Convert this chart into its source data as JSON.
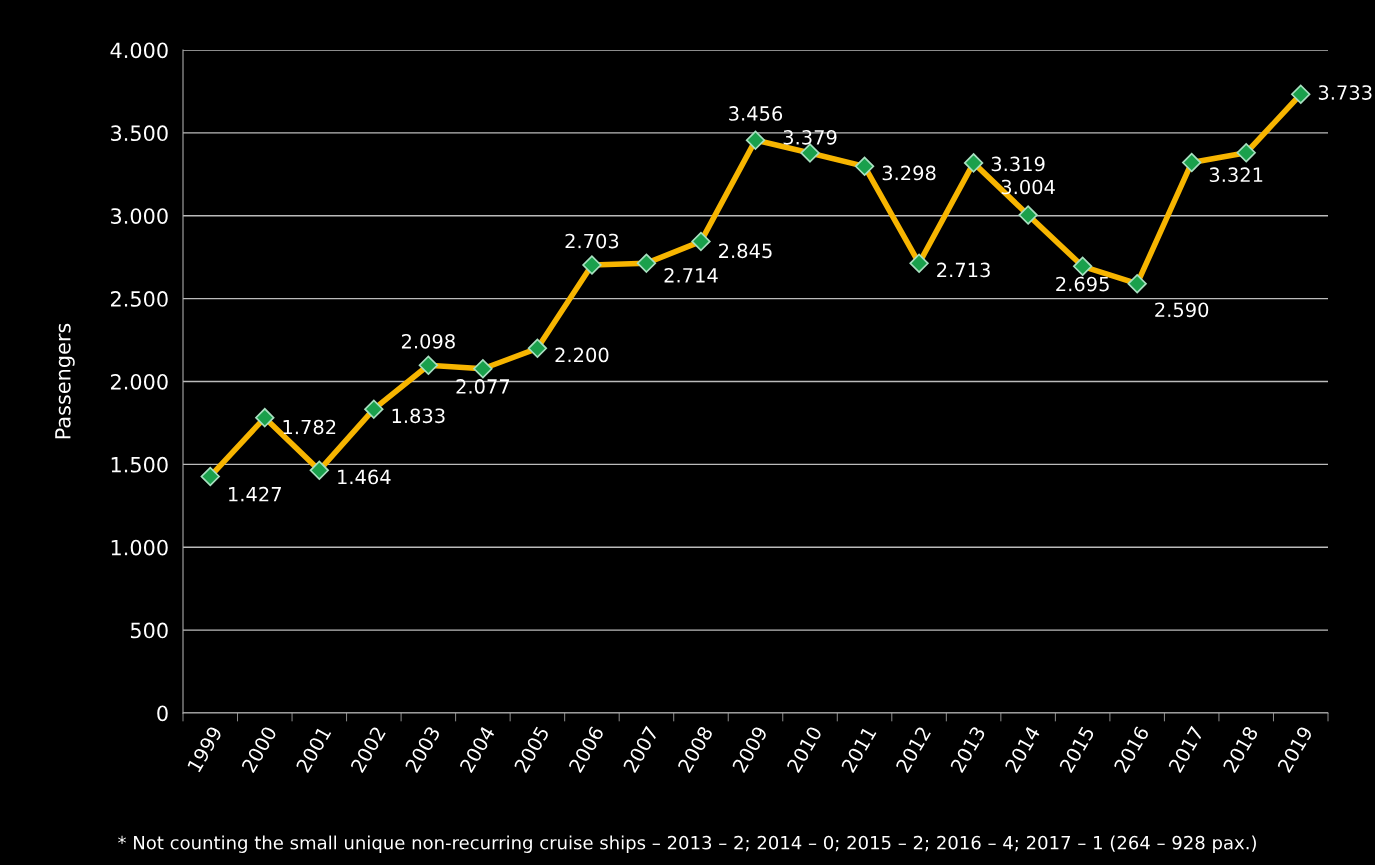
{
  "chart_data": {
    "type": "line",
    "ylabel": "Passengers",
    "categories": [
      "1999",
      "2000",
      "2001",
      "2002",
      "2003",
      "2004",
      "2005",
      "2006",
      "2007",
      "2008",
      "2009",
      "2010",
      "2011",
      "2012",
      "2013",
      "2014",
      "2015",
      "2016",
      "2017",
      "2018",
      "2019"
    ],
    "series": [
      {
        "color": "#f7b500",
        "values": [
          1427,
          1782,
          1464,
          1833,
          2098,
          2077,
          2200,
          2703,
          2714,
          2845,
          3456,
          3379,
          3298,
          2713,
          3319,
          3004,
          2695,
          2590,
          3321,
          3380,
          3733
        ],
        "value_labels": [
          "1.427",
          "1.782",
          "1.464",
          "1.833",
          "2.098",
          "2.077",
          "2.200",
          "2.703",
          "2.714",
          "2.845",
          "3.456",
          "3.379",
          "3.298",
          "2.713",
          "3.319",
          "3.004",
          "2.695",
          "2.590",
          "3.321",
          null,
          "3.733"
        ]
      }
    ],
    "ylim": [
      0,
      4000
    ],
    "yticks": [
      {
        "value": 0,
        "label": "0"
      },
      {
        "value": 500,
        "label": "500"
      },
      {
        "value": 1000,
        "label": "1.000"
      },
      {
        "value": 1500,
        "label": "1.500"
      },
      {
        "value": 2000,
        "label": "2.000"
      },
      {
        "value": 2500,
        "label": "2.500"
      },
      {
        "value": 3000,
        "label": "3.000"
      },
      {
        "value": 3500,
        "label": "3.500"
      },
      {
        "value": 4000,
        "label": "4.000"
      }
    ],
    "grid": "y",
    "marker": "diamond",
    "line_style": "solid",
    "legend": false,
    "annotations": [
      "* Not counting the small unique non-recurring cruise ships – 2013 – 2; 2014 – 0; 2015 – 2; 2016 – 4; 2017 – 1 (264 – 928 pax.)"
    ]
  }
}
